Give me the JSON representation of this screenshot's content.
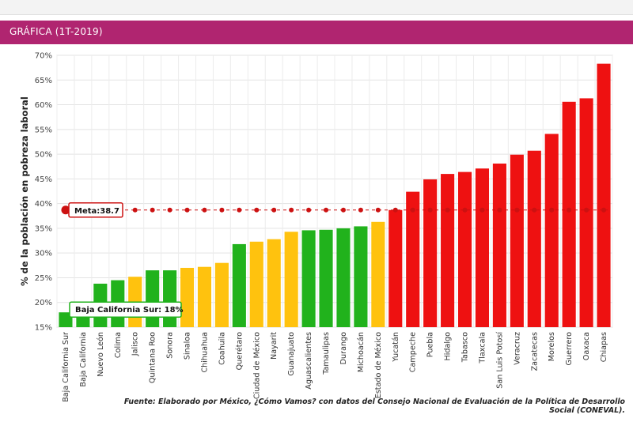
{
  "header": {
    "title": "GRÁFICA (1T-2019)"
  },
  "source_note": "Fuente: Elaborado por México, ¿Cómo Vamos? con datos del Consejo Nacional de Evaluación de la Política de Desarrollo Social (CONEVAL).",
  "colors": {
    "green": "#21b21c",
    "yellow": "#ffc20e",
    "red": "#ee1111",
    "header": "#b02570",
    "meta_line": "#cc1111",
    "callout_border_green": "#21b21c",
    "callout_border_red": "#cc1111"
  },
  "chart_data": {
    "type": "bar",
    "ylabel": "% de la población en pobreza laboral",
    "xlabel": "",
    "ylim": [
      15,
      70
    ],
    "yticks": [
      "15%",
      "20%",
      "25%",
      "30%",
      "35%",
      "40%",
      "45%",
      "50%",
      "55%",
      "60%",
      "65%",
      "70%"
    ],
    "grid": true,
    "categories": [
      "Baja California Sur",
      "Baja California",
      "Nuevo León",
      "Colima",
      "Jalisco",
      "Quintana Roo",
      "Sonora",
      "Sinaloa",
      "Chihuahua",
      "Coahuila",
      "Querétaro",
      "Ciudad de México",
      "Nayarit",
      "Guanajuato",
      "Aguascalientes",
      "Tamaulipas",
      "Durango",
      "Michoacán",
      "Estado de México",
      "Yucatán",
      "Campeche",
      "Puebla",
      "Hidalgo",
      "Tabasco",
      "Tlaxcala",
      "San Luis Potosí",
      "Veracruz",
      "Zacatecas",
      "Morelos",
      "Guerrero",
      "Oaxaca",
      "Chiapas"
    ],
    "values": [
      18.0,
      19.5,
      23.8,
      24.5,
      25.2,
      26.5,
      26.5,
      27.0,
      27.2,
      28.0,
      31.8,
      32.3,
      32.8,
      34.3,
      34.6,
      34.7,
      35.0,
      35.4,
      36.3,
      38.7,
      42.4,
      44.9,
      46.0,
      46.4,
      47.1,
      48.1,
      49.9,
      50.7,
      54.1,
      60.6,
      61.3,
      68.3
    ],
    "bar_colors": [
      "green",
      "green",
      "green",
      "green",
      "yellow",
      "green",
      "green",
      "yellow",
      "yellow",
      "yellow",
      "green",
      "yellow",
      "yellow",
      "yellow",
      "green",
      "green",
      "green",
      "green",
      "yellow",
      "red",
      "red",
      "red",
      "red",
      "red",
      "red",
      "red",
      "red",
      "red",
      "red",
      "red",
      "red",
      "red"
    ],
    "reference_line": {
      "label": "Meta",
      "value": 38.7,
      "callout": "Meta:38.7"
    },
    "highlight": {
      "category": "Baja California Sur",
      "callout": "Baja California Sur: 18%"
    }
  }
}
